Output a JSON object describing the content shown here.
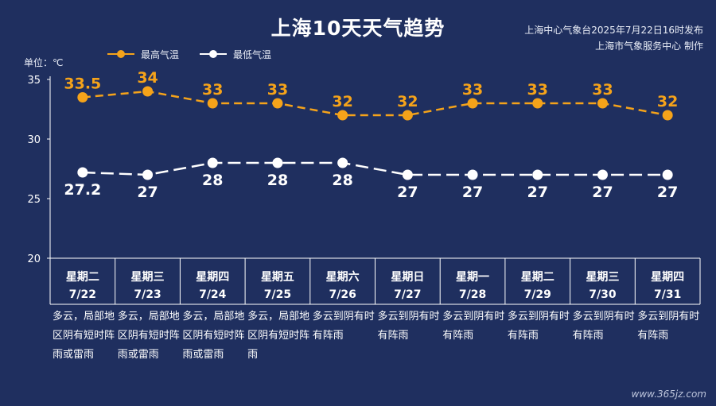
{
  "title": "上海10天天气趋势",
  "publisher": {
    "line1": "上海中心气象台2025年7月22日16时发布",
    "line2": "上海市气象服务中心 制作"
  },
  "unit_label": "单位：℃",
  "legend": {
    "high": "最高气温",
    "low": "最低气温"
  },
  "colors": {
    "background": "#1f2f5f",
    "high": "#f5a31a",
    "low": "#ffffff",
    "grid": "#ffffff"
  },
  "watermark": "www.365jz.com",
  "chart_data": {
    "type": "line",
    "title": "上海10天天气趋势",
    "ylabel": "单位：℃",
    "ylim": [
      20,
      35
    ],
    "yticks": [
      20,
      25,
      30,
      35
    ],
    "x": [
      "7/22",
      "7/23",
      "7/24",
      "7/25",
      "7/26",
      "7/27",
      "7/28",
      "7/29",
      "7/30",
      "7/31"
    ],
    "weekdays": [
      "星期二",
      "星期三",
      "星期四",
      "星期五",
      "星期六",
      "星期日",
      "星期一",
      "星期二",
      "星期三",
      "星期四"
    ],
    "weather": [
      "多云，局部地区阴有短时阵雨或雷雨",
      "多云，局部地区阴有短时阵雨或雷雨",
      "多云，局部地区阴有短时阵雨或雷雨",
      "多云，局部地区阴有短时阵雨",
      "多云到阴有时有阵雨",
      "多云到阴有时有阵雨",
      "多云到阴有时有阵雨",
      "多云到阴有时有阵雨",
      "多云到阴有时有阵雨",
      "多云到阴有时有阵雨"
    ],
    "series": [
      {
        "name": "最高气温",
        "values": [
          33.5,
          34,
          33,
          33,
          32,
          32,
          33,
          33,
          33,
          32
        ]
      },
      {
        "name": "最低气温",
        "values": [
          27.2,
          27,
          28,
          28,
          28,
          27,
          27,
          27,
          27,
          27
        ]
      }
    ],
    "legend_position": "top-left",
    "grid": false
  }
}
